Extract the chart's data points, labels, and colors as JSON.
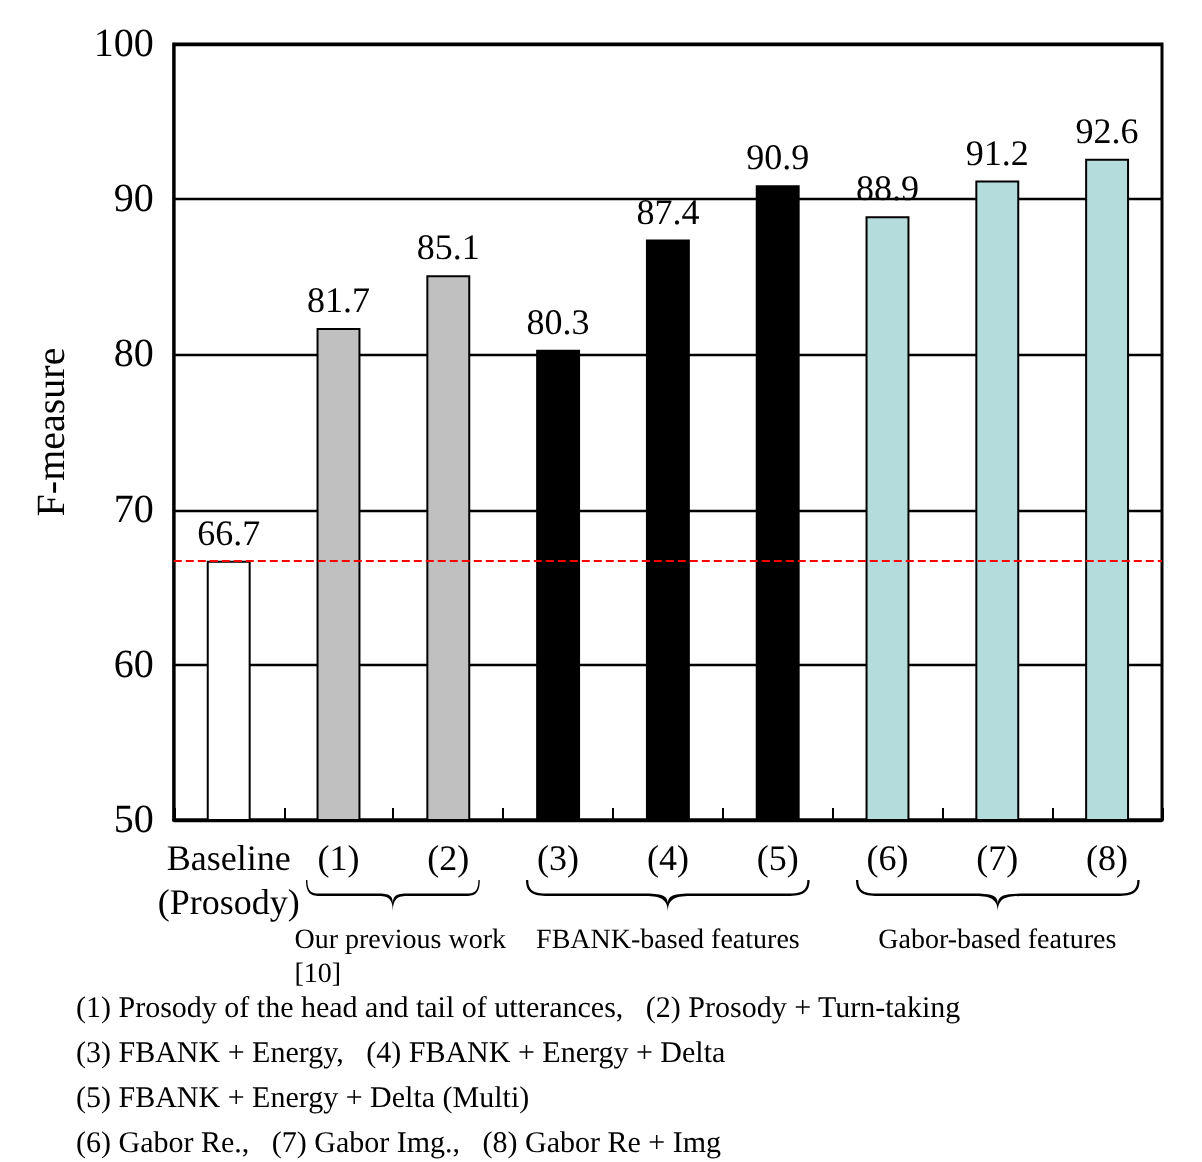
{
  "chart_data": {
    "type": "bar",
    "ylabel": "F-measure",
    "categories": [
      "Baseline\n(Prosody)",
      "(1)",
      "(2)",
      "(3)",
      "(4)",
      "(5)",
      "(6)",
      "(7)",
      "(8)"
    ],
    "values": [
      66.7,
      81.7,
      85.1,
      80.3,
      87.4,
      90.9,
      88.9,
      91.2,
      92.6
    ],
    "colors": [
      "#ffffff",
      "#c0c0c0",
      "#c0c0c0",
      "#000000",
      "#000000",
      "#000000",
      "#b4dcdc",
      "#b4dcdc",
      "#b4dcdc"
    ],
    "ylim": [
      50,
      100
    ],
    "yticks": [
      50,
      60,
      70,
      80,
      90,
      100
    ],
    "grid": "y",
    "data_labels": true,
    "ref_lines": [
      {
        "axis": "y",
        "value": 66.7,
        "color": "#ff0000",
        "line_style": "dashed"
      }
    ],
    "annotations": [
      "Our previous work\n[10]",
      "FBANK-based features",
      "Gabor-based features",
      "(1) Prosody of the head and tail of utterances,   (2) Prosody + Turn-taking",
      "(3) FBANK + Energy,   (4) FBANK + Energy + Delta",
      "(5) FBANK + Energy + Delta (Multi)",
      "(6) Gabor Re.,   (7) Gabor Img.,   (8) Gabor Re + Img"
    ]
  }
}
